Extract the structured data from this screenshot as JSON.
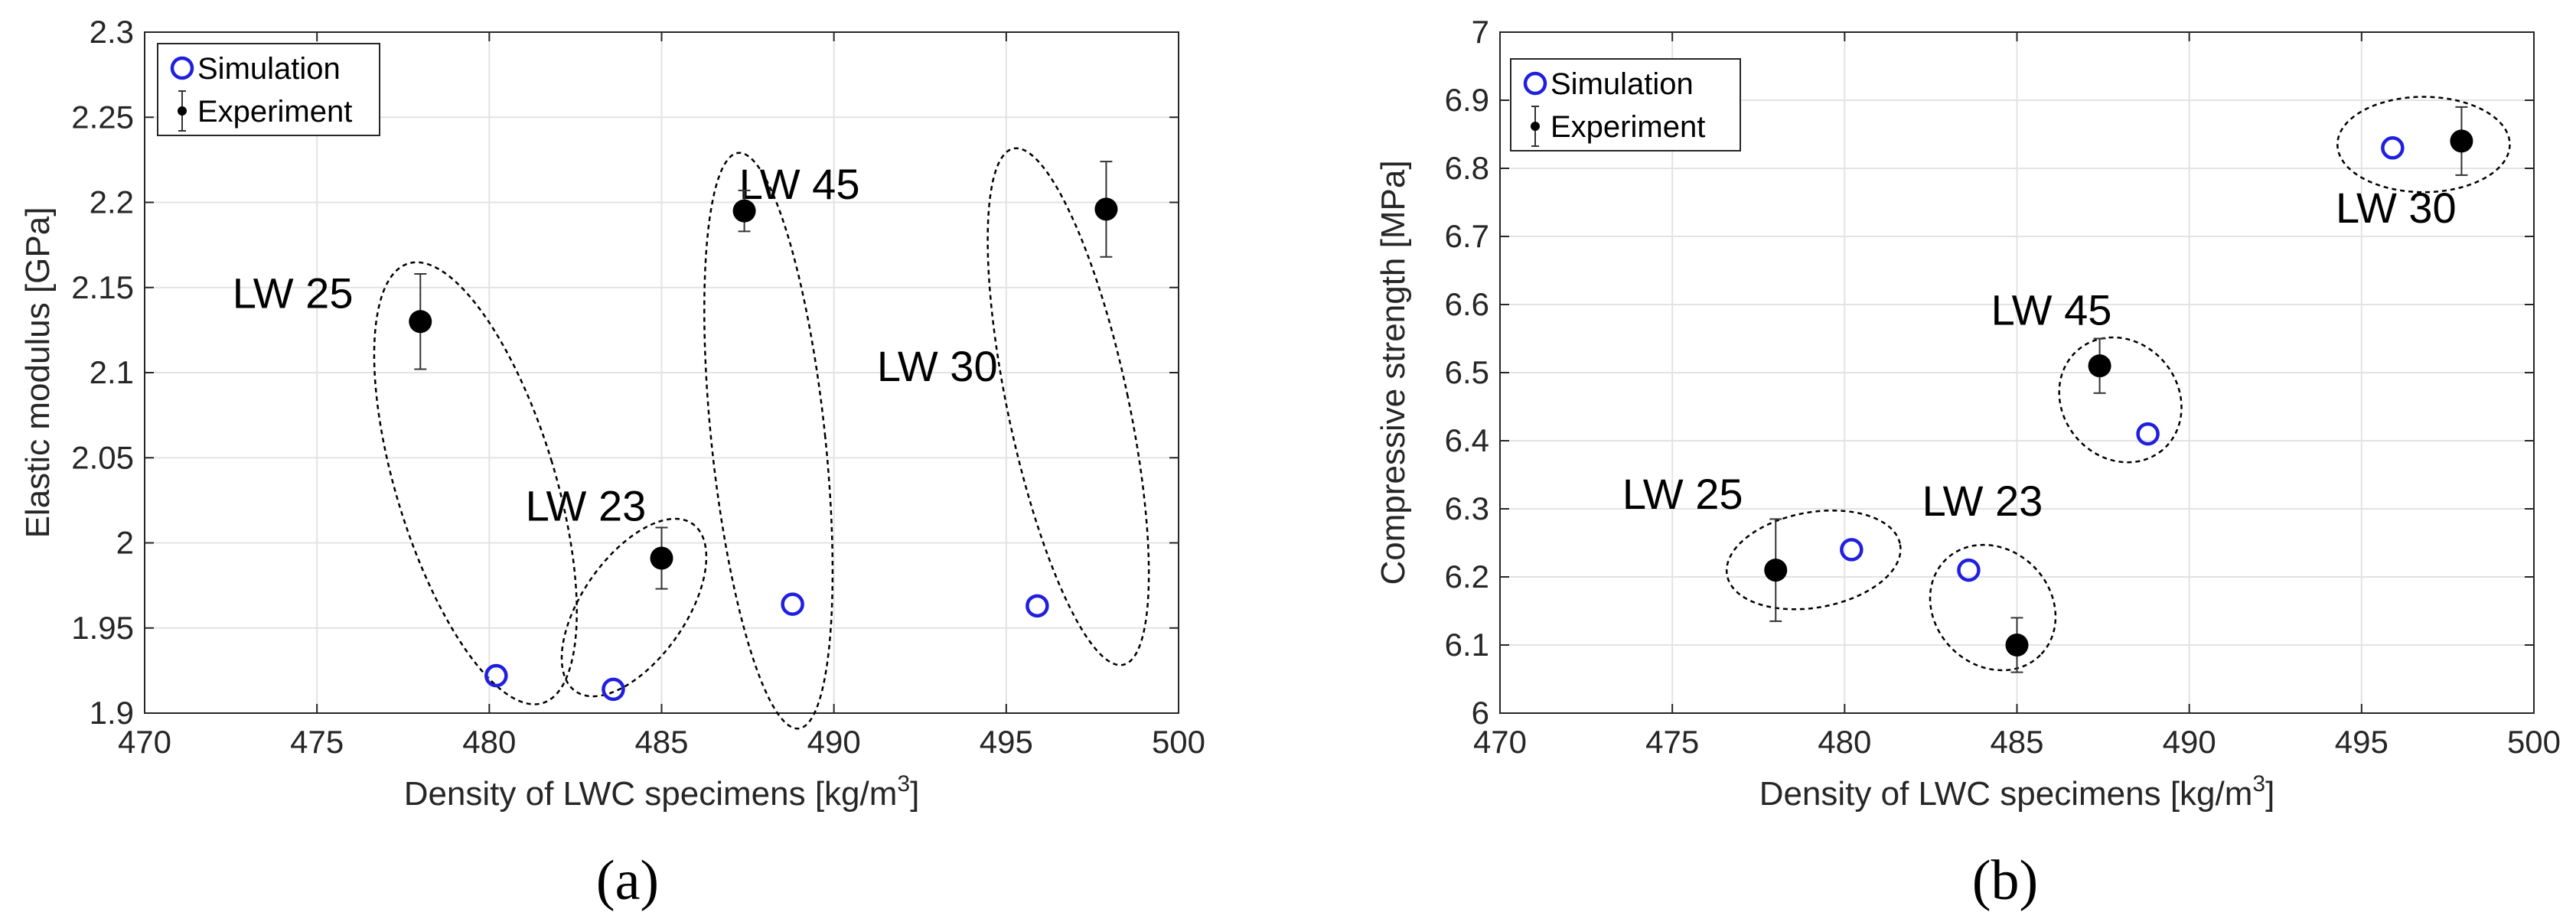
{
  "colors": {
    "simulation": "#1f1fe0",
    "experiment": "#000000"
  },
  "chart_data": [
    {
      "type": "scatter",
      "panel_label": "(a)",
      "xlabel": "Density of LWC specimens [kg/m",
      "xlabel_sup": "3",
      "xlabel_close": "]",
      "ylabel": "Elastic modulus [GPa]",
      "xlim": [
        470,
        500
      ],
      "ylim": [
        1.9,
        2.3
      ],
      "xticks": [
        470,
        475,
        480,
        485,
        490,
        495,
        500
      ],
      "xtick_labels": [
        "470",
        "475",
        "480",
        "485",
        "490",
        "495",
        "500"
      ],
      "yticks": [
        1.9,
        1.95,
        2.0,
        2.05,
        2.1,
        2.15,
        2.2,
        2.25,
        2.3
      ],
      "ytick_labels": [
        "1.9",
        "1.95",
        "2",
        "2.05",
        "2.1",
        "2.15",
        "2.2",
        "2.25",
        "2.3"
      ],
      "grid": true,
      "legend": {
        "position": "top-left",
        "entries": [
          "Simulation",
          "Experiment"
        ]
      },
      "series": [
        {
          "name": "Simulation",
          "marker": "open-circle",
          "x": [
            480.2,
            483.6,
            488.8,
            495.9
          ],
          "y": [
            1.922,
            1.914,
            1.964,
            1.963
          ]
        },
        {
          "name": "Experiment",
          "marker": "filled-circle-errorbar",
          "x": [
            478.0,
            485.0,
            487.4,
            497.9
          ],
          "y": [
            2.13,
            1.991,
            2.195,
            2.196
          ],
          "error": [
            0.028,
            0.018,
            0.012,
            0.028
          ]
        }
      ],
      "groups": [
        {
          "label": "LW 25",
          "label_x": 474.3,
          "label_y": 2.138,
          "ellipse": {
            "cx": 479.6,
            "cy": 2.035,
            "rx": 2.3,
            "ry": 0.135,
            "rotate": -17
          }
        },
        {
          "label": "LW 23",
          "label_x": 482.8,
          "label_y": 2.013,
          "ellipse": {
            "cx": 484.2,
            "cy": 1.962,
            "rx": 1.5,
            "ry": 0.06,
            "rotate": 35
          }
        },
        {
          "label": "LW 45",
          "label_x": 489.0,
          "label_y": 2.202,
          "ellipse": {
            "cx": 488.1,
            "cy": 2.06,
            "rx": 1.65,
            "ry": 0.17,
            "rotate": -6
          }
        },
        {
          "label": "LW 30",
          "label_x": 493.0,
          "label_y": 2.095,
          "ellipse": {
            "cx": 496.8,
            "cy": 2.08,
            "rx": 1.75,
            "ry": 0.155,
            "rotate": -12
          }
        }
      ]
    },
    {
      "type": "scatter",
      "panel_label": "(b)",
      "xlabel": "Density of LWC specimens [kg/m",
      "xlabel_sup": "3",
      "xlabel_close": "]",
      "ylabel": "Compressive strength [MPa]",
      "xlim": [
        470,
        500
      ],
      "ylim": [
        6.0,
        7.0
      ],
      "xticks": [
        470,
        475,
        480,
        485,
        490,
        495,
        500
      ],
      "xtick_labels": [
        "470",
        "475",
        "480",
        "485",
        "490",
        "495",
        "500"
      ],
      "yticks": [
        6.0,
        6.1,
        6.2,
        6.3,
        6.4,
        6.5,
        6.6,
        6.7,
        6.8,
        6.9,
        7.0
      ],
      "ytick_labels": [
        "6",
        "6.1",
        "6.2",
        "6.3",
        "6.4",
        "6.5",
        "6.6",
        "6.7",
        "6.8",
        "6.9",
        "7"
      ],
      "grid": true,
      "legend": {
        "position": "top-left",
        "entries": [
          "Simulation",
          "Experiment"
        ]
      },
      "series": [
        {
          "name": "Simulation",
          "marker": "open-circle",
          "x": [
            480.2,
            483.6,
            488.8,
            495.9
          ],
          "y": [
            6.24,
            6.21,
            6.41,
            6.83
          ]
        },
        {
          "name": "Experiment",
          "marker": "filled-circle-errorbar",
          "x": [
            478.0,
            485.0,
            487.4,
            497.9
          ],
          "y": [
            6.21,
            6.1,
            6.51,
            6.84
          ],
          "error": [
            0.075,
            0.04,
            0.04,
            0.05
          ]
        }
      ],
      "groups": [
        {
          "label": "LW 25",
          "label_x": 475.3,
          "label_y": 6.3,
          "ellipse": {
            "cx": 479.1,
            "cy": 6.225,
            "rx": 2.55,
            "ry": 0.07,
            "rotate": -10
          }
        },
        {
          "label": "LW 23",
          "label_x": 484.0,
          "label_y": 6.29,
          "ellipse": {
            "cx": 484.3,
            "cy": 6.155,
            "rx": 1.95,
            "ry": 0.085,
            "rotate": 45
          }
        },
        {
          "label": "LW 45",
          "label_x": 486.0,
          "label_y": 6.57,
          "ellipse": {
            "cx": 488.0,
            "cy": 6.46,
            "rx": 1.9,
            "ry": 0.085,
            "rotate": 50
          }
        },
        {
          "label": "LW 30",
          "label_x": 496.0,
          "label_y": 6.72,
          "ellipse": {
            "cx": 496.8,
            "cy": 6.835,
            "rx": 2.5,
            "ry": 0.07,
            "rotate": 0
          }
        }
      ]
    }
  ]
}
